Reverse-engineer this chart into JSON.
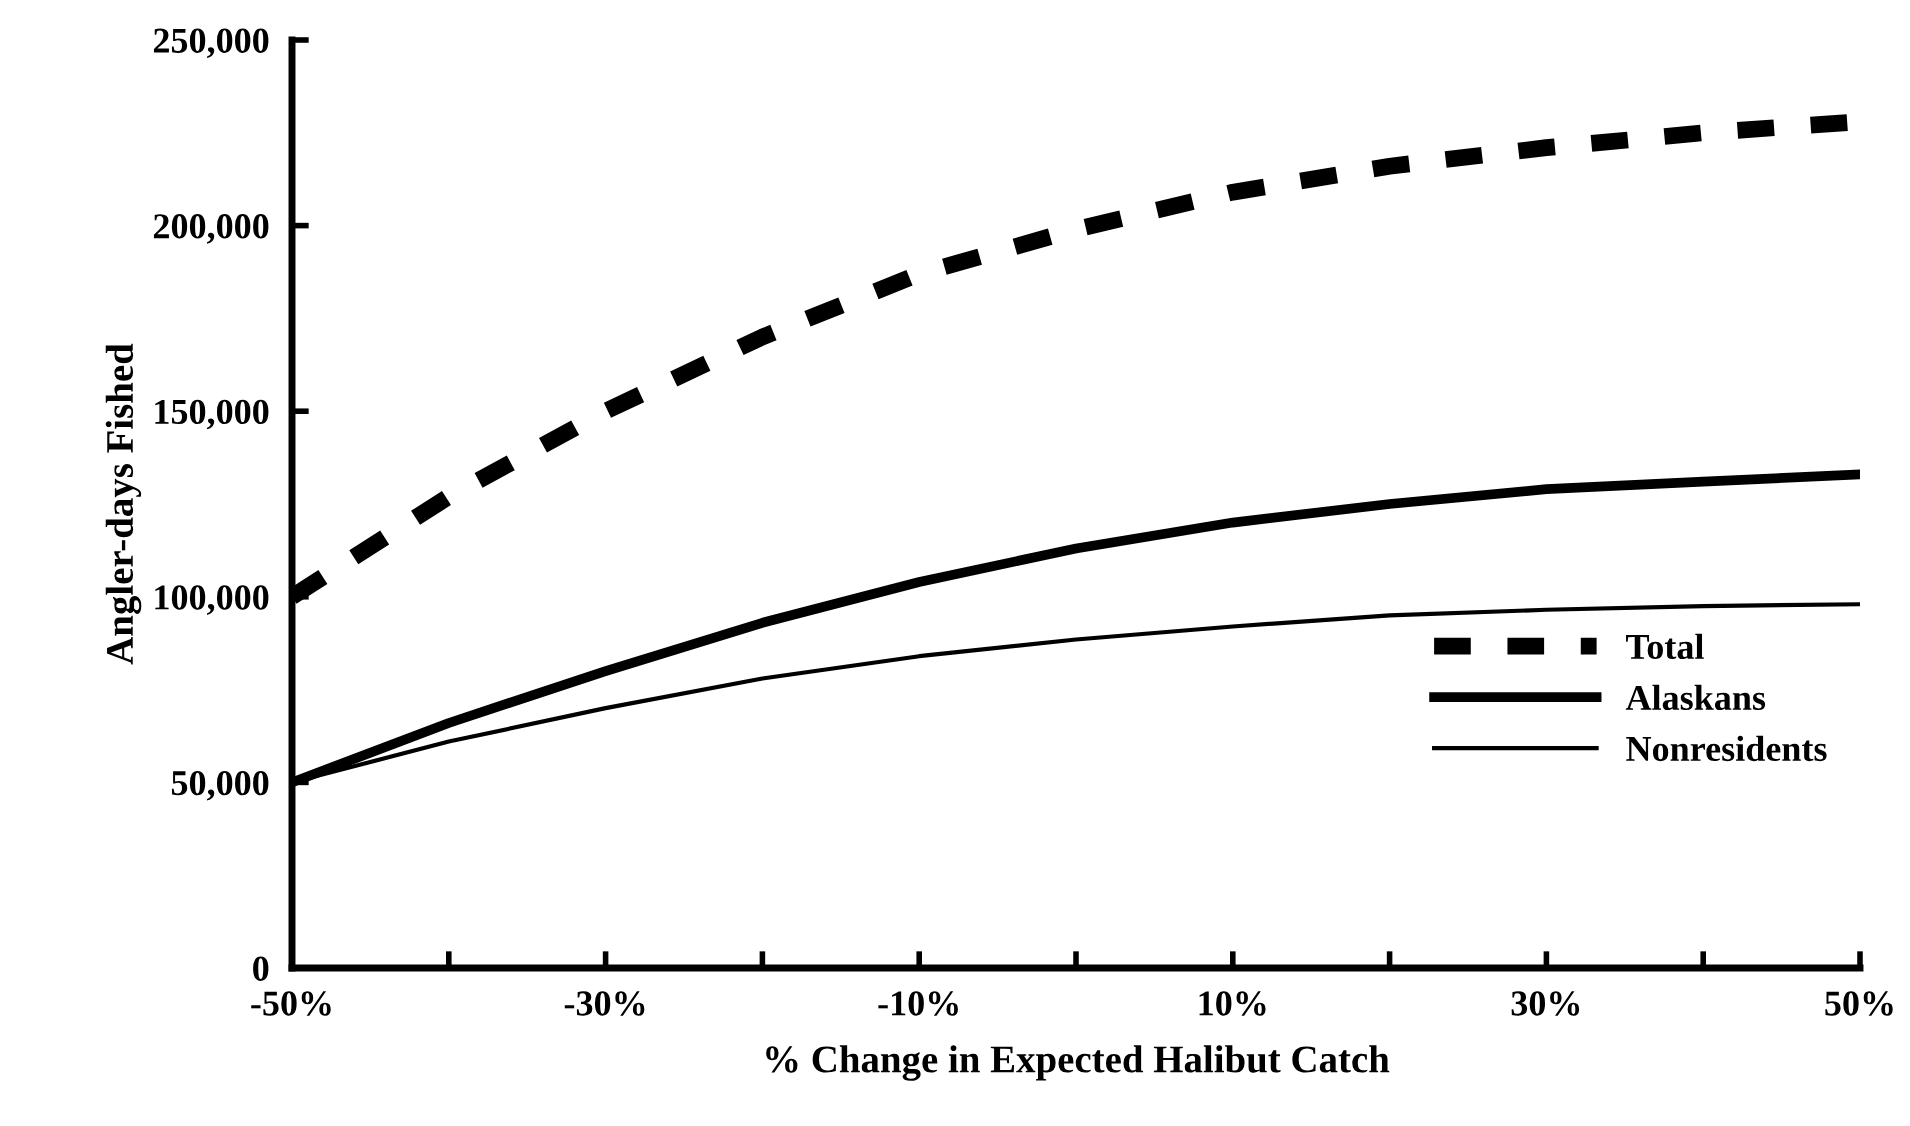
{
  "chart_data": {
    "type": "line",
    "xlabel": "% Change in Expected Halibut Catch",
    "ylabel": "Angler-days Fished",
    "x": [
      -50,
      -40,
      -30,
      -20,
      -10,
      0,
      10,
      20,
      30,
      40,
      50
    ],
    "series": [
      {
        "name": "Total",
        "color": "#000000",
        "line_style": "dashed",
        "values": [
          100000,
          127000,
          150000,
          170000,
          187000,
          199000,
          209000,
          216000,
          221000,
          225000,
          228000
        ]
      },
      {
        "name": "Alaskans",
        "color": "#000000",
        "line_style": "solid",
        "values": [
          50000,
          66000,
          80000,
          93000,
          104000,
          113000,
          120000,
          125000,
          129000,
          131000,
          133000
        ]
      },
      {
        "name": "Nonresidents",
        "color": "#000000",
        "line_style": "solid",
        "values": [
          50000,
          61000,
          70000,
          78000,
          84000,
          88500,
          92000,
          95000,
          96500,
          97500,
          98000
        ]
      }
    ],
    "xlim": [
      -50,
      50
    ],
    "xticks": [
      {
        "value": -50,
        "label": "-50%"
      },
      {
        "value": -40,
        "label": null
      },
      {
        "value": -30,
        "label": "-30%"
      },
      {
        "value": -20,
        "label": null
      },
      {
        "value": -10,
        "label": "-10%"
      },
      {
        "value": 0,
        "label": null
      },
      {
        "value": 10,
        "label": "10%"
      },
      {
        "value": 20,
        "label": null
      },
      {
        "value": 30,
        "label": "30%"
      },
      {
        "value": 40,
        "label": null
      },
      {
        "value": 50,
        "label": "50%"
      }
    ],
    "ylim": [
      0,
      250000
    ],
    "yticks": [
      {
        "value": 0,
        "label": "0"
      },
      {
        "value": 50000,
        "label": "50,000"
      },
      {
        "value": 100000,
        "label": "100,000"
      },
      {
        "value": 150000,
        "label": "150,000"
      },
      {
        "value": 200000,
        "label": "200,000"
      },
      {
        "value": 250000,
        "label": "250,000"
      }
    ],
    "grid": false,
    "legend": "bottom right",
    "marker": "none"
  }
}
